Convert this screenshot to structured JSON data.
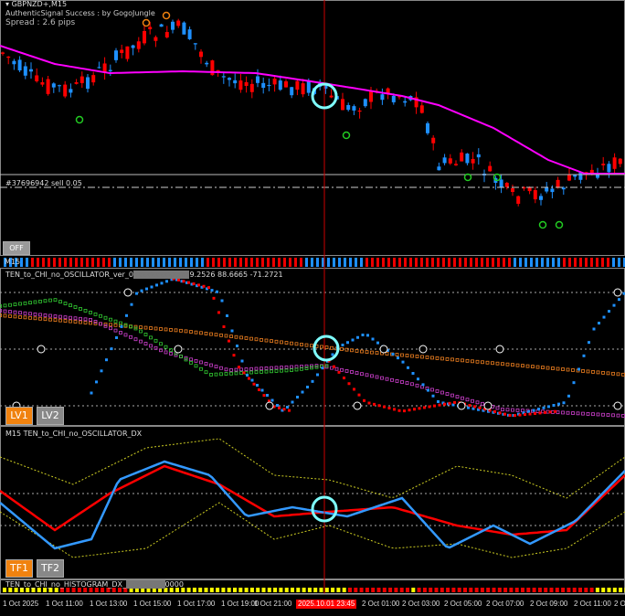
{
  "main_chart": {
    "symbol_title": "GBPNZD+,M15",
    "indicator_credit": "AuthenticSignal Success : by GogoJungle",
    "spread_text": "Spread : 2.6 pips",
    "order_line_label": "#37696942 sell 0.05",
    "off_button": "OFF",
    "strip_label": "M15"
  },
  "oscillator1": {
    "title": "TEN_to_CHI_no_OSCILLATOR_ver_0",
    "values_text": "9.2526 88.6665 -71.2721",
    "buttons": [
      "LV1",
      "LV2"
    ]
  },
  "oscillator2": {
    "title": "M15 TEN_to_CHI_no_OSCILLATOR_DX",
    "buttons": [
      "TF1",
      "TF2"
    ]
  },
  "histogram": {
    "title": "TEN_to_CHI_no_HISTOGRAM_DX_",
    "title_suffix": "0000"
  },
  "time_axis": {
    "ticks": [
      "1 Oct 2025",
      "1 Oct 11:00",
      "1 Oct 13:00",
      "1 Oct 15:00",
      "1 Oct 17:00",
      "1 Oct 19:00",
      "1 Oct 21:00",
      "2 Oct 01:00",
      "2 Oct 03:00",
      "2 Oct 05:00",
      "2 Oct 07:00",
      "2 Oct 09:00",
      "2 Oct 11:00",
      "2 O"
    ],
    "crosshair_time": "2025.10.01 23:45"
  },
  "colors": {
    "bull": "#1e90ff",
    "bear": "#ff0000",
    "ma": "#ff00ff",
    "highlight": "#7fffff",
    "button_active": "#f0820f",
    "button_inactive": "#888888"
  }
}
